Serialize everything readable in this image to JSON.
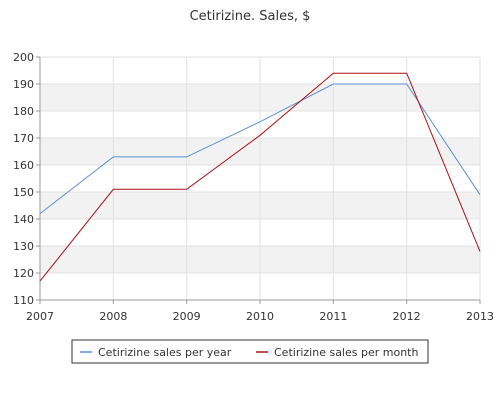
{
  "chart_data": {
    "type": "line",
    "title": "Cetirizine. Sales, $",
    "xlabel": "",
    "ylabel": "",
    "x": [
      2007,
      2008,
      2009,
      2010,
      2011,
      2012,
      2013
    ],
    "xlim": [
      2007,
      2013
    ],
    "ylim": [
      110,
      200
    ],
    "yticks": [
      110,
      120,
      130,
      140,
      150,
      160,
      170,
      180,
      190,
      200
    ],
    "grid": "horizontal bands and vertical lines",
    "legend": "bottom",
    "series": [
      {
        "name": "Cetirizine sales per year",
        "color": "#5b8fd6",
        "values": [
          142,
          163,
          163,
          176,
          190,
          190,
          149
        ]
      },
      {
        "name": "Cetirizine sales per month",
        "color": "#aa1111",
        "values": [
          117,
          151,
          151,
          171,
          194,
          194,
          128
        ]
      }
    ]
  }
}
